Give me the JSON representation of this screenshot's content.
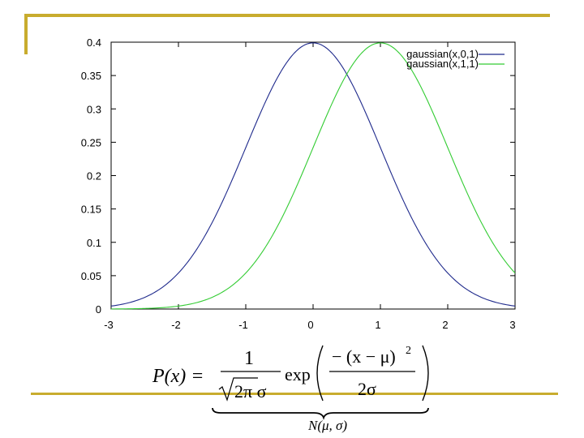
{
  "chart_data": {
    "type": "line",
    "xlim": [
      -3,
      3
    ],
    "ylim": [
      0,
      0.4
    ],
    "x_ticks": [
      "-3",
      "-2",
      "-1",
      "0",
      "1",
      "2",
      "3"
    ],
    "y_ticks": [
      "0",
      "0.05",
      "0.1",
      "0.15",
      "0.2",
      "0.25",
      "0.3",
      "0.35",
      "0.4"
    ],
    "legend_position": "top-right",
    "grid": false,
    "series": [
      {
        "name": "gaussian(x,0,1)",
        "mu": 0,
        "sigma": 1,
        "color": "#1f2a8c"
      },
      {
        "name": "gaussian(x,1,1)",
        "mu": 1,
        "sigma": 1,
        "color": "#33cc33"
      }
    ]
  },
  "formula": {
    "lhs": "P(x) =",
    "numerator": "1",
    "denominator": "2π σ",
    "exp": "exp",
    "inner_numerator": "− (x − μ)",
    "inner_exponent": "2",
    "inner_denominator": "2σ",
    "brace_label": "N(μ, σ)"
  },
  "colors": {
    "frame_accent": "#c8ac2e",
    "axis": "#000000"
  }
}
